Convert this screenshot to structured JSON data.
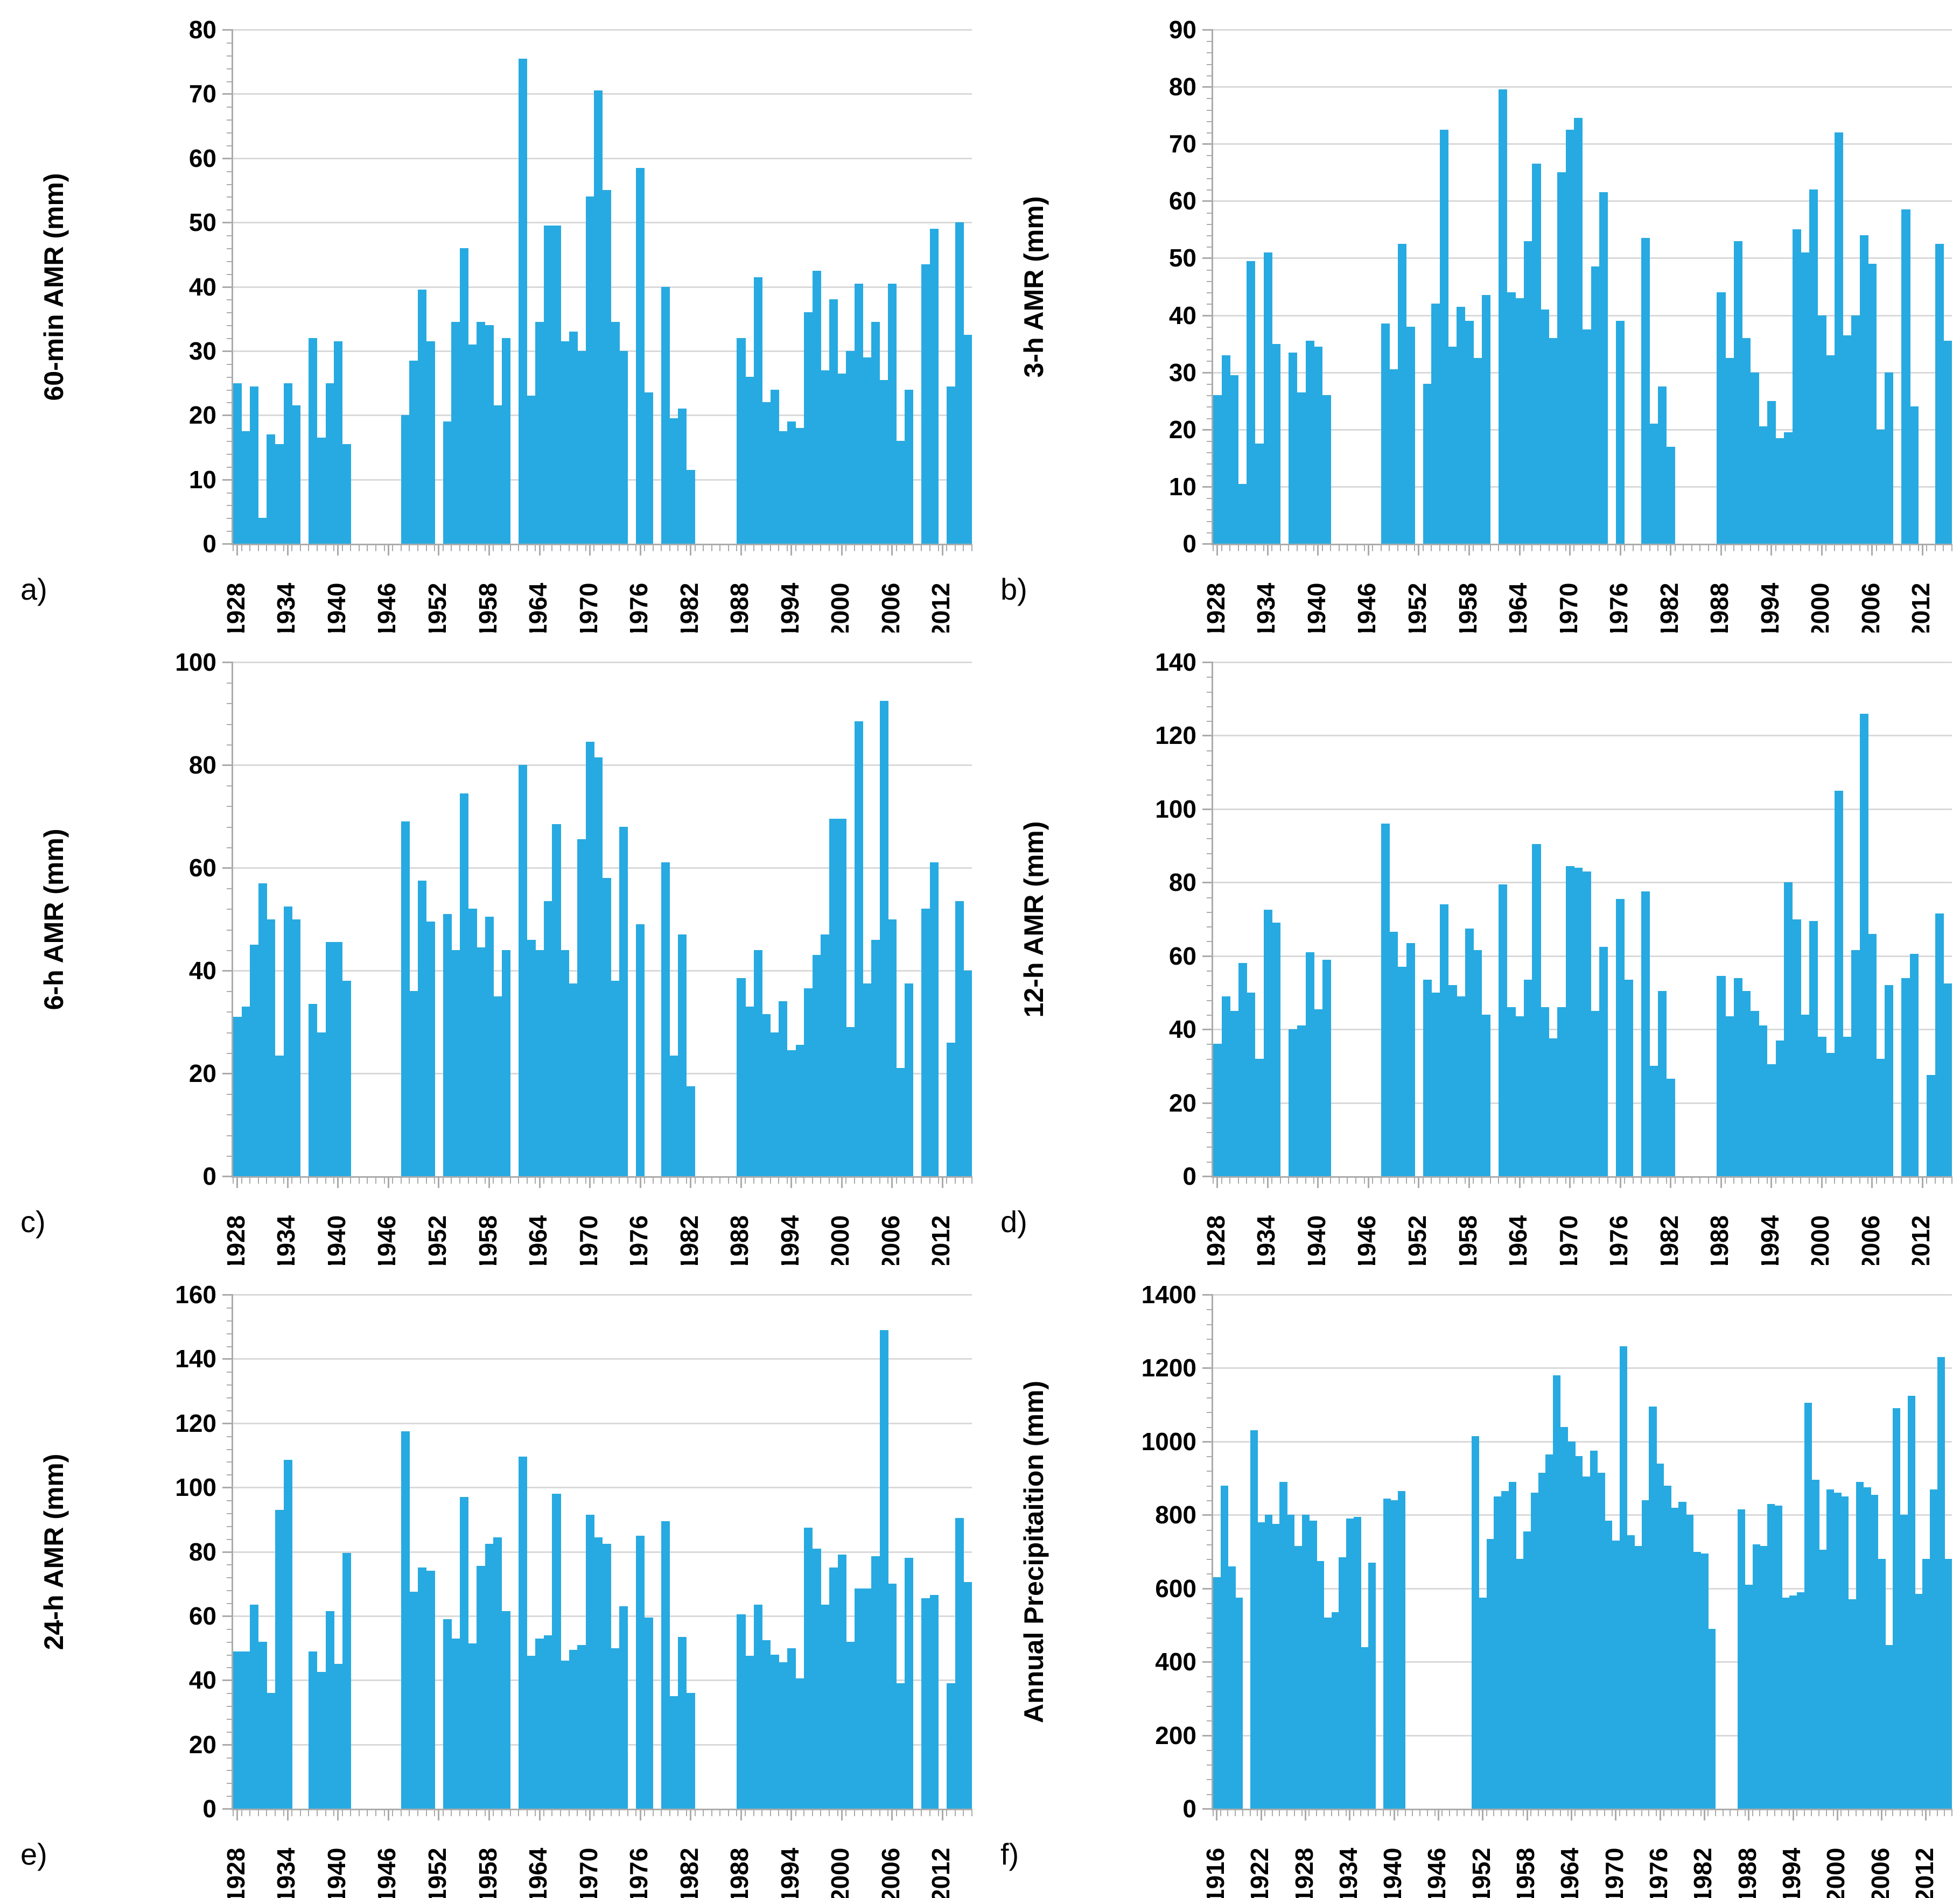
{
  "figure": {
    "background": "#ffffff",
    "bar_color": "#27aae1",
    "gridline_color": "#d9d9d9",
    "axis_color": "#ababab",
    "panel_letters": [
      "a)",
      "b)",
      "c)",
      "d)",
      "e)",
      "f)"
    ]
  },
  "chart_data": [
    {
      "panel_label": "a)",
      "type": "bar",
      "title": "",
      "xlabel": "",
      "ylabel": "60-min AMR (mm)",
      "ylim": [
        0,
        80
      ],
      "ytick_step": 10,
      "y_minor_step": 2,
      "grid": "horizontal-major",
      "legend": "none",
      "year_start": 1928,
      "year_end": 2015,
      "x_tick_labels": [
        "1928",
        "1934",
        "1940",
        "1946",
        "1952",
        "1958",
        "1964",
        "1970",
        "1976",
        "1982",
        "1988",
        "1994",
        "2000",
        "2006",
        "2012"
      ],
      "values": [
        25,
        17.5,
        24.5,
        4,
        17,
        15.5,
        25,
        21.5,
        null,
        32,
        16.5,
        25,
        31.5,
        15.5,
        null,
        null,
        null,
        null,
        null,
        null,
        20,
        28.5,
        39.5,
        31.5,
        null,
        19,
        34.5,
        46,
        31,
        34.5,
        34,
        21.5,
        32,
        null,
        75.5,
        23,
        34.5,
        49.5,
        49.5,
        31.5,
        33,
        30,
        54,
        70.5,
        55,
        34.5,
        30,
        null,
        58.5,
        23.5,
        null,
        40,
        19.5,
        21,
        11.5,
        null,
        null,
        null,
        null,
        null,
        32,
        26,
        41.5,
        22,
        24,
        17.5,
        19,
        18,
        36,
        42.5,
        27,
        38,
        26.5,
        30,
        40.5,
        29,
        34.5,
        25.5,
        40.5,
        16,
        24,
        null,
        43.5,
        49,
        null,
        24.5,
        50,
        32.5
      ]
    },
    {
      "panel_label": "b)",
      "type": "bar",
      "title": "",
      "xlabel": "",
      "ylabel": "3-h AMR (mm)",
      "ylim": [
        0,
        90
      ],
      "ytick_step": 10,
      "y_minor_step": 2,
      "grid": "horizontal-major",
      "legend": "none",
      "year_start": 1928,
      "year_end": 2015,
      "x_tick_labels": [
        "1928",
        "1934",
        "1940",
        "1946",
        "1952",
        "1958",
        "1964",
        "1970",
        "1976",
        "1982",
        "1988",
        "1994",
        "2000",
        "2006",
        "2012"
      ],
      "values": [
        26,
        33,
        29.5,
        10.5,
        49.5,
        17.5,
        51,
        35,
        null,
        33.5,
        26.5,
        35.5,
        34.5,
        26,
        null,
        null,
        null,
        null,
        null,
        null,
        38.5,
        30.5,
        52.5,
        38,
        null,
        28,
        42,
        72.5,
        34.5,
        41.5,
        39,
        32.5,
        43.5,
        null,
        79.5,
        44,
        43,
        53,
        66.5,
        41,
        36,
        65,
        72.5,
        74.5,
        37.5,
        48.5,
        61.5,
        null,
        39,
        null,
        null,
        53.5,
        21,
        27.5,
        17,
        null,
        null,
        null,
        null,
        null,
        44,
        32.5,
        53,
        36,
        30,
        20.5,
        25,
        18.5,
        19.5,
        55,
        51,
        62,
        40,
        33,
        72,
        36.5,
        40,
        54,
        49,
        20,
        30,
        null,
        58.5,
        24,
        null,
        null,
        52.5,
        35.5
      ]
    },
    {
      "panel_label": "c)",
      "type": "bar",
      "title": "",
      "xlabel": "",
      "ylabel": "6-h AMR (mm)",
      "ylim": [
        0,
        100
      ],
      "ytick_step": 20,
      "y_minor_step": 4,
      "grid": "horizontal-major",
      "legend": "none",
      "year_start": 1928,
      "year_end": 2015,
      "x_tick_labels": [
        "1928",
        "1934",
        "1940",
        "1946",
        "1952",
        "1958",
        "1964",
        "1970",
        "1976",
        "1982",
        "1988",
        "1994",
        "2000",
        "2006",
        "2012"
      ],
      "values": [
        31,
        33,
        45,
        57,
        50,
        23.5,
        52.5,
        50,
        null,
        33.5,
        28,
        45.5,
        45.5,
        38,
        null,
        null,
        null,
        null,
        null,
        null,
        69,
        36,
        57.5,
        49.5,
        null,
        51,
        44,
        74.5,
        52,
        44.5,
        50.5,
        35,
        44,
        null,
        80,
        46,
        44,
        53.5,
        68.5,
        44,
        37.5,
        65.5,
        84.5,
        81.5,
        58,
        38,
        68,
        null,
        49,
        null,
        null,
        61,
        23.5,
        47,
        17.5,
        null,
        null,
        null,
        null,
        null,
        38.5,
        33,
        44,
        31.5,
        28,
        34,
        24.5,
        25.5,
        36.5,
        43,
        47,
        69.5,
        69.5,
        29,
        88.5,
        37.5,
        46,
        92.5,
        50,
        21,
        37.5,
        null,
        52,
        61,
        null,
        26,
        53.5,
        40
      ]
    },
    {
      "panel_label": "d)",
      "type": "bar",
      "title": "",
      "xlabel": "",
      "ylabel": "12-h AMR (mm)",
      "ylim": [
        0,
        140
      ],
      "ytick_step": 20,
      "y_minor_step": 4,
      "grid": "horizontal-major",
      "legend": "none",
      "year_start": 1928,
      "year_end": 2015,
      "x_tick_labels": [
        "1928",
        "1934",
        "1940",
        "1946",
        "1952",
        "1958",
        "1964",
        "1970",
        "1976",
        "1982",
        "1988",
        "1994",
        "2000",
        "2006",
        "2012"
      ],
      "values": [
        36,
        49,
        45,
        58,
        50,
        32,
        72.5,
        69,
        null,
        40,
        41,
        61,
        45.5,
        59,
        null,
        null,
        null,
        null,
        null,
        null,
        96,
        66.5,
        57,
        63.5,
        null,
        53.5,
        50,
        74,
        52,
        49,
        67.5,
        61.5,
        44,
        null,
        79.5,
        46,
        43.5,
        53.5,
        90.5,
        46,
        37.5,
        46,
        84.5,
        84,
        83,
        45,
        62.5,
        null,
        75.5,
        53.5,
        null,
        77.5,
        30,
        50.5,
        26.5,
        null,
        null,
        null,
        null,
        null,
        54.5,
        43.5,
        54,
        50.5,
        45,
        41,
        30.5,
        37,
        80,
        70,
        44,
        69.5,
        38,
        33.5,
        105,
        38,
        61.5,
        126,
        66,
        32,
        52,
        null,
        54,
        60.5,
        null,
        27.5,
        71.5,
        52.5
      ]
    },
    {
      "panel_label": "e)",
      "type": "bar",
      "title": "",
      "xlabel": "",
      "ylabel": "24-h AMR (mm)",
      "ylim": [
        0,
        160
      ],
      "ytick_step": 20,
      "y_minor_step": 4,
      "grid": "horizontal-major",
      "legend": "none",
      "year_start": 1928,
      "year_end": 2015,
      "x_tick_labels": [
        "1928",
        "1934",
        "1940",
        "1946",
        "1952",
        "1958",
        "1964",
        "1970",
        "1976",
        "1982",
        "1988",
        "1994",
        "2000",
        "2006",
        "2012"
      ],
      "values": [
        49,
        49,
        63.5,
        52,
        36,
        93,
        108.5,
        null,
        null,
        49,
        42.5,
        61.5,
        45,
        79.5,
        null,
        null,
        null,
        null,
        null,
        null,
        117.5,
        67.5,
        75,
        74,
        null,
        59,
        53,
        97,
        51.5,
        75.5,
        82.5,
        84.5,
        61.5,
        null,
        109.5,
        47.5,
        53,
        54,
        98,
        46,
        49.5,
        51,
        91.5,
        84.5,
        82.5,
        50,
        63,
        null,
        85,
        59.5,
        null,
        89.5,
        35,
        53.5,
        36,
        null,
        null,
        null,
        null,
        null,
        60.5,
        47.5,
        63.5,
        52.5,
        48,
        45.5,
        50,
        40.5,
        87.5,
        81,
        63.5,
        75,
        79,
        52,
        68.5,
        68.5,
        78.5,
        149,
        70,
        39,
        78,
        null,
        65.5,
        66.5,
        null,
        39,
        90.5,
        70.5
      ]
    },
    {
      "panel_label": "f)",
      "type": "bar",
      "title": "",
      "xlabel": "",
      "ylabel": "Annual Precipitaition (mm)",
      "ylim": [
        0,
        1400
      ],
      "ytick_step": 200,
      "y_minor_step": 40,
      "grid": "horizontal-major",
      "legend": "none",
      "year_start": 1916,
      "year_end": 2015,
      "x_tick_labels": [
        "1916",
        "1922",
        "1928",
        "1934",
        "1940",
        "1946",
        "1952",
        "1958",
        "1964",
        "1970",
        "1976",
        "1982",
        "1988",
        "1994",
        "2000",
        "2006",
        "2012"
      ],
      "values": [
        630,
        880,
        660,
        575,
        null,
        1030,
        780,
        800,
        775,
        890,
        800,
        715,
        800,
        785,
        675,
        520,
        535,
        685,
        790,
        795,
        440,
        670,
        null,
        845,
        840,
        865,
        null,
        null,
        null,
        null,
        null,
        null,
        null,
        null,
        null,
        1015,
        575,
        735,
        850,
        865,
        890,
        680,
        755,
        860,
        915,
        965,
        1180,
        1040,
        1000,
        960,
        905,
        975,
        915,
        785,
        730,
        1260,
        745,
        715,
        840,
        1095,
        940,
        880,
        820,
        835,
        800,
        700,
        695,
        490,
        null,
        null,
        null,
        815,
        610,
        720,
        715,
        830,
        825,
        575,
        580,
        590,
        1105,
        895,
        705,
        870,
        860,
        850,
        570,
        890,
        875,
        855,
        680,
        445,
        1090,
        800,
        1125,
        585,
        680,
        870,
        1230,
        680
      ]
    }
  ]
}
